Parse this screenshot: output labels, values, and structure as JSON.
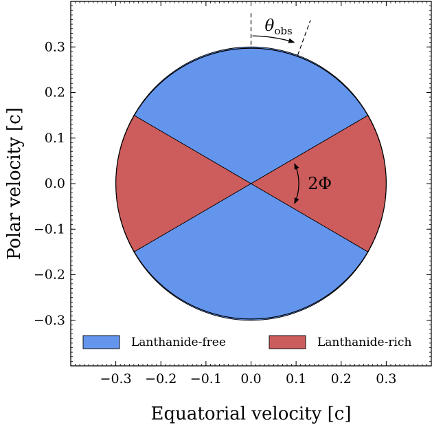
{
  "chart_data": {
    "type": "pie",
    "xlabel": "Equatorial velocity [c]",
    "ylabel": "Polar velocity [c]",
    "xlim": [
      -0.4,
      0.4
    ],
    "ylim": [
      -0.4,
      0.4
    ],
    "xticks": [
      -0.3,
      -0.2,
      -0.1,
      0.0,
      0.1,
      0.2,
      0.3
    ],
    "yticks": [
      -0.3,
      -0.2,
      -0.1,
      0.0,
      0.1,
      0.2,
      0.3
    ],
    "xtick_labels": [
      "−0.3",
      "−0.2",
      "−0.1",
      "0.0",
      "0.1",
      "0.2",
      "0.3"
    ],
    "ytick_labels": [
      "−0.3",
      "−0.2",
      "−0.1",
      "0.0",
      "0.1",
      "0.2",
      "0.3"
    ],
    "radius": 0.3,
    "half_opening_angle_deg": 30,
    "regions": [
      {
        "name": "Lanthanide-free",
        "color": "#6495ED",
        "sectors_deg": [
          [
            30,
            150
          ],
          [
            210,
            330
          ]
        ]
      },
      {
        "name": "Lanthanide-rich",
        "color": "#CD5C5C",
        "sectors_deg": [
          [
            -30,
            30
          ],
          [
            150,
            210
          ]
        ]
      }
    ],
    "observer_angle_deg": 20,
    "annotations": {
      "theta_symbol": "θ",
      "theta_subscript": "obs",
      "opening_label": "2Φ"
    },
    "legend": {
      "placement": "lower center",
      "entries": [
        "Lanthanide-free",
        "Lanthanide-rich"
      ]
    },
    "grid": false
  }
}
